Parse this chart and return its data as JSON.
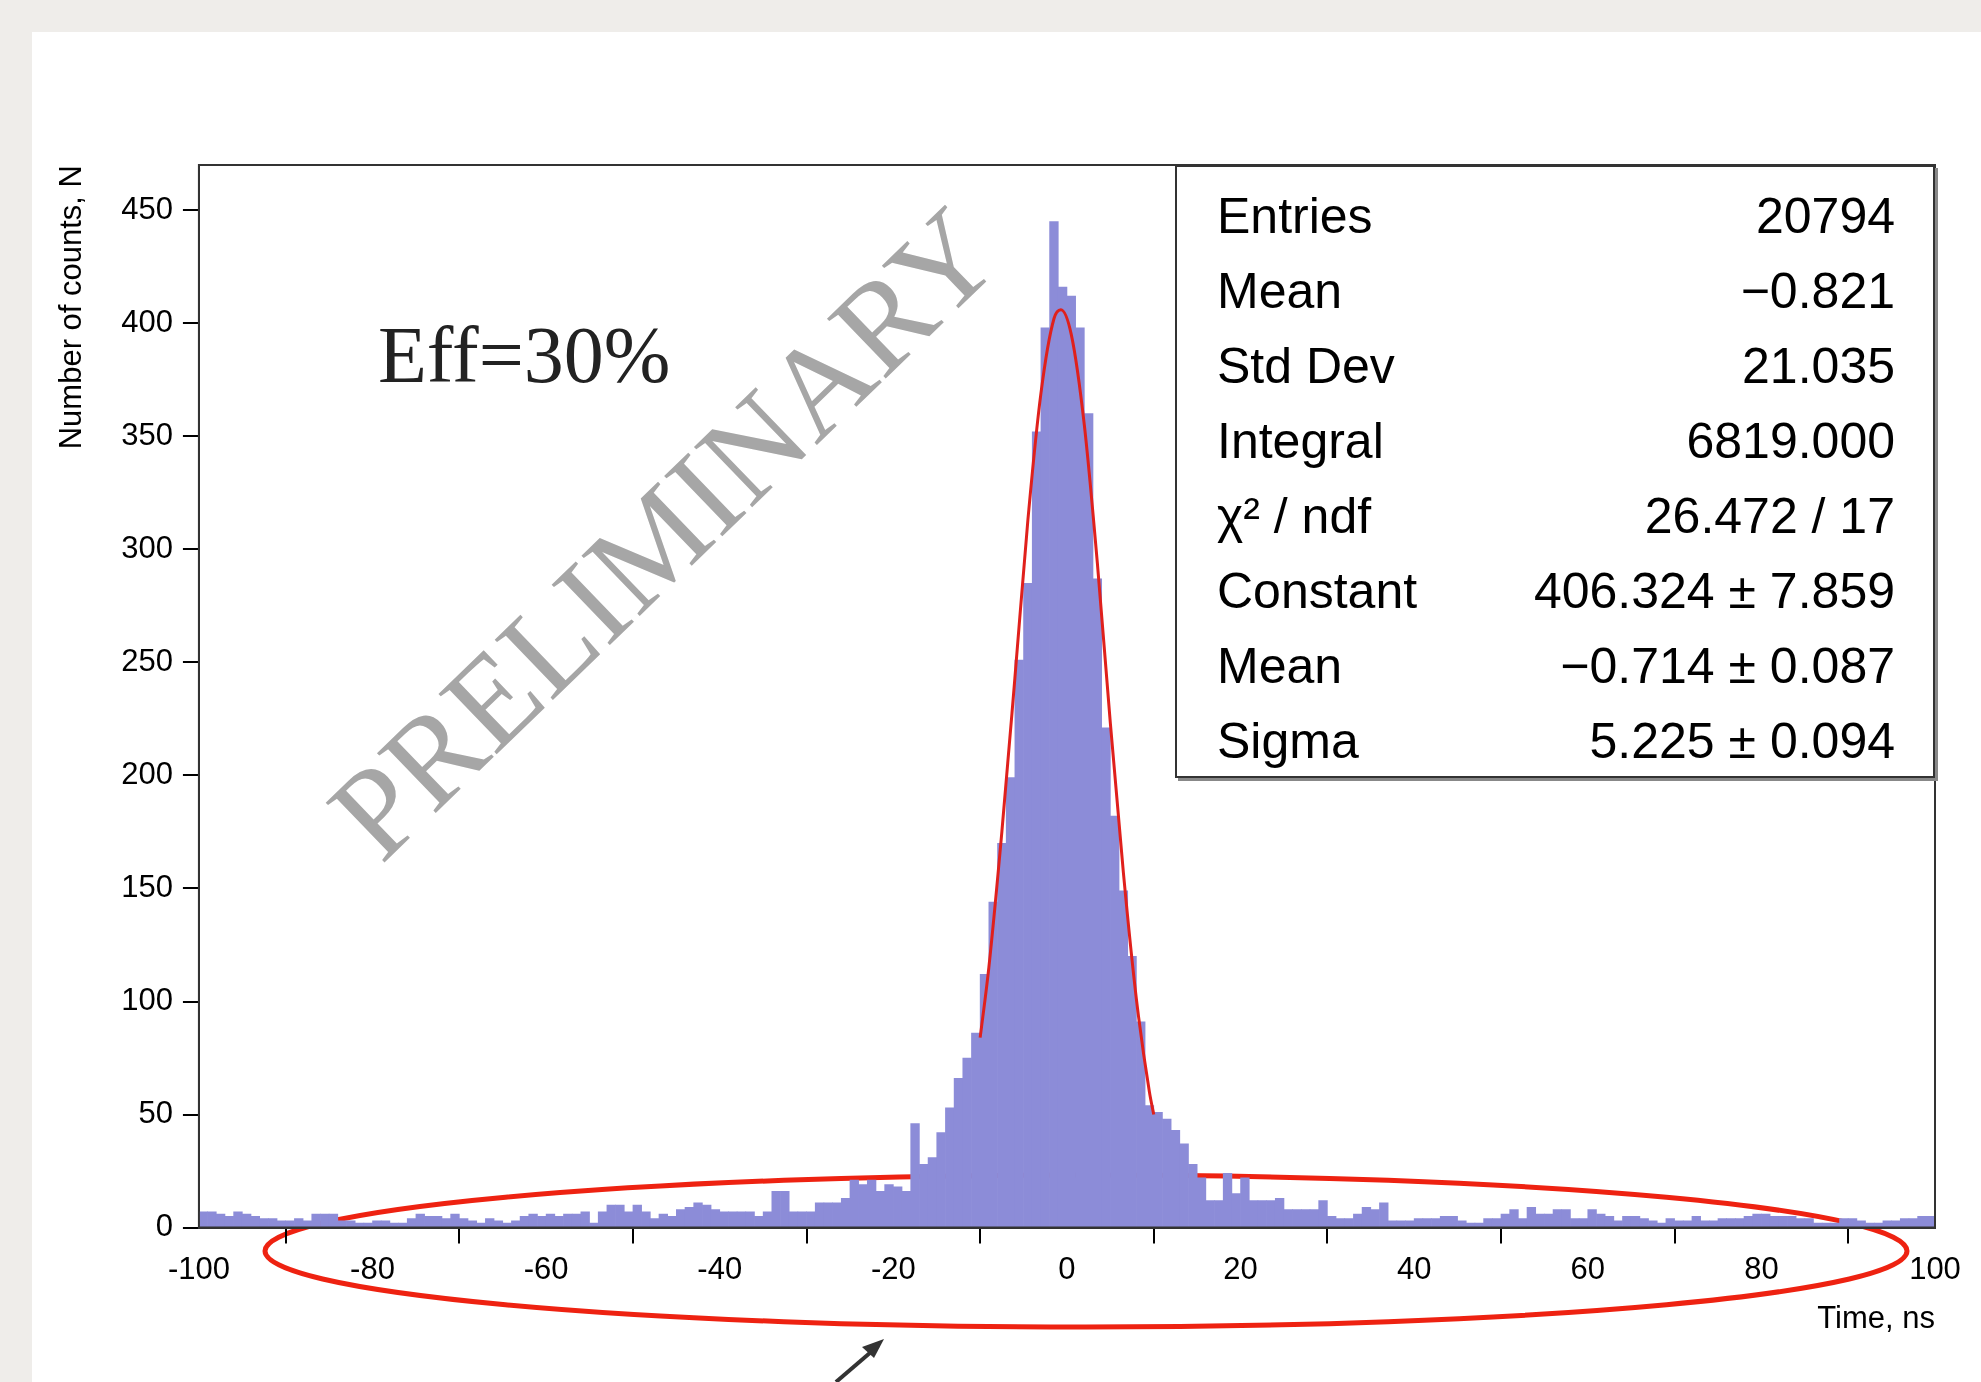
{
  "chart_data": {
    "type": "histogram",
    "xlabel": "Time, ns",
    "ylabel": "Number of counts, N",
    "bins": [
      -100,
      -99,
      -98,
      -97,
      -96,
      -95,
      -94,
      -93,
      -92,
      -91,
      -90,
      -89,
      -88,
      -87,
      -86,
      -85,
      -84,
      -83,
      -82,
      -81,
      -80,
      -79,
      -78,
      -77,
      -76,
      -75,
      -74,
      -73,
      -72,
      -71,
      -70,
      -69,
      -68,
      -67,
      -66,
      -65,
      -64,
      -63,
      -62,
      -61,
      -60,
      -59,
      -58,
      -57,
      -56,
      -55,
      -54,
      -53,
      -52,
      -51,
      -50,
      -49,
      -48,
      -47,
      -46,
      -45,
      -44,
      -43,
      -42,
      -41,
      -40,
      -39,
      -38,
      -37,
      -36,
      -35,
      -34,
      -33,
      -32,
      -31,
      -30,
      -29,
      -28,
      -27,
      -26,
      -25,
      -24,
      -23,
      -22,
      -21,
      -20,
      -19,
      -18,
      -17,
      -16,
      -15,
      -14,
      -13,
      -12,
      -11,
      -10,
      -9,
      -8,
      -7,
      -6,
      -5,
      -4,
      -3,
      -2,
      -1,
      0,
      1,
      2,
      3,
      4,
      5,
      6,
      7,
      8,
      9,
      10,
      11,
      12,
      13,
      14,
      15,
      16,
      17,
      18,
      19,
      20,
      21,
      22,
      23,
      24,
      25,
      26,
      27,
      28,
      29,
      30,
      31,
      32,
      33,
      34,
      35,
      36,
      37,
      38,
      39,
      40,
      41,
      42,
      43,
      44,
      45,
      46,
      47,
      48,
      49,
      50,
      51,
      52,
      53,
      54,
      55,
      56,
      57,
      58,
      59,
      60,
      61,
      62,
      63,
      64,
      65,
      66,
      67,
      68,
      69,
      70,
      71,
      72,
      73,
      74,
      75,
      76,
      77,
      78,
      79,
      80,
      81,
      82,
      83,
      84,
      85,
      86,
      87,
      88,
      89,
      90,
      91,
      92,
      93,
      94,
      95,
      96,
      97,
      98,
      99,
      100
    ],
    "series": [
      {
        "color": "#8c8cd8",
        "values": [
          7,
          7,
          6,
          5,
          7,
          6,
          5,
          4,
          4,
          3,
          3,
          4,
          3,
          6,
          6,
          6,
          3,
          3,
          2,
          2,
          3,
          3,
          2,
          2,
          4,
          6,
          5,
          5,
          4,
          6,
          4,
          3,
          2,
          4,
          3,
          2,
          3,
          5,
          6,
          5,
          6,
          5,
          6,
          6,
          7,
          2,
          7,
          10,
          10,
          7,
          10,
          7,
          4,
          6,
          5,
          8,
          9,
          11,
          10,
          8,
          7,
          7,
          7,
          7,
          5,
          7,
          16,
          16,
          7,
          7,
          7,
          11,
          11,
          11,
          13,
          21,
          19,
          21,
          16,
          19,
          18,
          16,
          46,
          28,
          31,
          42,
          53,
          66,
          75,
          86,
          112,
          144,
          170,
          199,
          251,
          285,
          352,
          398,
          445,
          416,
          412,
          398,
          360,
          287,
          221,
          182,
          149,
          120,
          91,
          54,
          51,
          48,
          43,
          37,
          28,
          22,
          12,
          12,
          24,
          15,
          22,
          12,
          12,
          12,
          13,
          8,
          8,
          8,
          8,
          12,
          5,
          4,
          4,
          6,
          9,
          8,
          11,
          3,
          3,
          3,
          4,
          4,
          4,
          5,
          5,
          3,
          2,
          2,
          4,
          4,
          6,
          8,
          4,
          9,
          6,
          6,
          8,
          8,
          4,
          4,
          8,
          6,
          5,
          3,
          5,
          5,
          4,
          3,
          2,
          4,
          3,
          3,
          5,
          3,
          3,
          4,
          4,
          4,
          5,
          6,
          6,
          5,
          5,
          5,
          4,
          4,
          2,
          2,
          2,
          4,
          4,
          3,
          2,
          2,
          3,
          3,
          4,
          4,
          5,
          5
        ]
      },
      {
        "type": "line",
        "color": "#e0201c",
        "x": [
          -10,
          -9,
          -7.5,
          -6,
          -4.5,
          -3,
          -1.5,
          -0.7,
          0.5,
          2,
          3.5,
          5,
          6.5,
          8,
          9.5,
          10
        ],
        "values": [
          84,
          115,
          175,
          243,
          313,
          369,
          402,
          406,
          395,
          355,
          294,
          223,
          157,
          101,
          60,
          50
        ]
      }
    ],
    "xlim": [
      -100,
      100
    ],
    "xticks": [
      -100,
      -80,
      -60,
      -40,
      -20,
      0,
      20,
      40,
      60,
      80,
      100
    ],
    "ylim": [
      0,
      470
    ],
    "yticks": [
      0,
      50,
      100,
      150,
      200,
      250,
      300,
      350,
      400,
      450
    ],
    "legend": false,
    "grid": false,
    "annotations": [
      "Eff=30%",
      "PRELIMINARY",
      "Entries",
      "20794",
      "Mean",
      "−0.821",
      "Std Dev",
      "21.035",
      "Integral",
      "6819.000",
      "χ² / ndf",
      "26.472 / 17",
      "Constant",
      "406.324 ± 7.859",
      "Mean",
      "−0.714 ± 0.087",
      "Sigma",
      "5.225 ± 0.094"
    ]
  }
}
